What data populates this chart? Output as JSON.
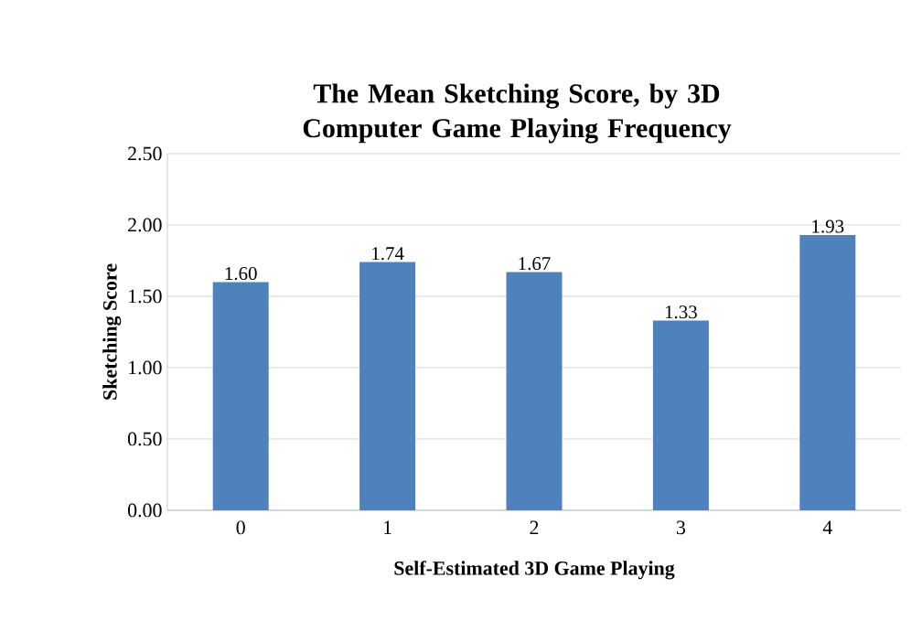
{
  "chart_data": {
    "type": "bar",
    "title": "The Mean Sketching Score, by 3D Computer Game Playing Frequency",
    "xlabel": "Self-Estimated 3D Game Playing",
    "ylabel": "Sketching Score",
    "categories": [
      "0",
      "1",
      "2",
      "3",
      "4"
    ],
    "values": [
      1.6,
      1.74,
      1.67,
      1.33,
      1.93
    ],
    "color": "#4f81bd",
    "ylim": [
      0,
      2.5
    ],
    "yticks": [
      {
        "value": 0,
        "label": "0.00"
      },
      {
        "value": 0.5,
        "label": "0.50"
      },
      {
        "value": 1,
        "label": "1.00"
      },
      {
        "value": 1.5,
        "label": "1.50"
      },
      {
        "value": 2,
        "label": "2.00"
      },
      {
        "value": 2.5,
        "label": "2.50"
      }
    ],
    "grid": "y",
    "value_labels": [
      "1.60",
      "1.74",
      "1.67",
      "1.33",
      "1.93"
    ]
  }
}
